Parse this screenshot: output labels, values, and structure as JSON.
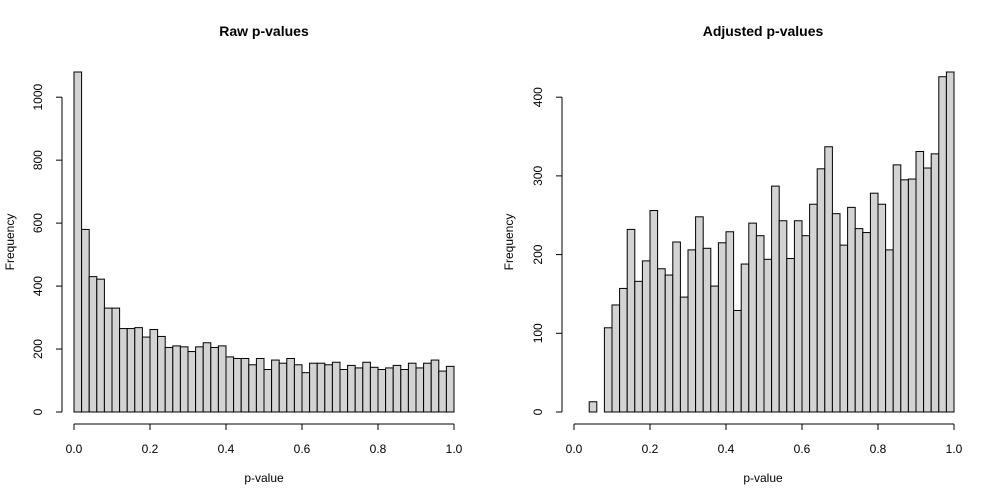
{
  "chart_data": [
    {
      "type": "bar",
      "title": "Raw p-values",
      "xlabel": "p-value",
      "ylabel": "Frequency",
      "bar_fill": "#d3d3d3",
      "bar_stroke": "#000000",
      "bin_width": 0.02,
      "xlim": [
        0,
        1
      ],
      "ylim": [
        0,
        1080
      ],
      "x_ticks": [
        "0.0",
        "0.2",
        "0.4",
        "0.6",
        "0.8",
        "1.0"
      ],
      "y_ticks": [
        "0",
        "200",
        "400",
        "600",
        "800",
        "1000"
      ],
      "bin_starts": [
        0.0,
        0.02,
        0.04,
        0.06,
        0.08,
        0.1,
        0.12,
        0.14,
        0.16,
        0.18,
        0.2,
        0.22,
        0.24,
        0.26,
        0.28,
        0.3,
        0.32,
        0.34,
        0.36,
        0.38,
        0.4,
        0.42,
        0.44,
        0.46,
        0.48,
        0.5,
        0.52,
        0.54,
        0.56,
        0.58,
        0.6,
        0.62,
        0.64,
        0.66,
        0.68,
        0.7,
        0.72,
        0.74,
        0.76,
        0.78,
        0.8,
        0.82,
        0.84,
        0.86,
        0.88,
        0.9,
        0.92,
        0.94,
        0.96,
        0.98
      ],
      "values": [
        1080,
        580,
        430,
        422,
        330,
        330,
        265,
        265,
        268,
        238,
        262,
        240,
        205,
        210,
        207,
        192,
        207,
        220,
        205,
        210,
        175,
        170,
        170,
        150,
        170,
        135,
        165,
        155,
        170,
        150,
        125,
        155,
        155,
        150,
        158,
        135,
        148,
        140,
        158,
        142,
        135,
        140,
        148,
        135,
        155,
        140,
        155,
        165,
        130,
        145
      ]
    },
    {
      "type": "bar",
      "title": "Adjusted p-values",
      "xlabel": "p-value",
      "ylabel": "Frequency",
      "bar_fill": "#d3d3d3",
      "bar_stroke": "#000000",
      "bin_width": 0.02,
      "xlim": [
        0,
        1
      ],
      "ylim": [
        0,
        432
      ],
      "x_ticks": [
        "0.0",
        "0.2",
        "0.4",
        "0.6",
        "0.8",
        "1.0"
      ],
      "y_ticks": [
        "0",
        "100",
        "200",
        "300",
        "400"
      ],
      "bin_starts": [
        0.04,
        0.06,
        0.08,
        0.1,
        0.12,
        0.14,
        0.16,
        0.18,
        0.2,
        0.22,
        0.24,
        0.26,
        0.28,
        0.3,
        0.32,
        0.34,
        0.36,
        0.38,
        0.4,
        0.42,
        0.44,
        0.46,
        0.48,
        0.5,
        0.52,
        0.54,
        0.56,
        0.58,
        0.6,
        0.62,
        0.64,
        0.66,
        0.68,
        0.7,
        0.72,
        0.74,
        0.76,
        0.78,
        0.8,
        0.82,
        0.84,
        0.86,
        0.88,
        0.9,
        0.92,
        0.94,
        0.96,
        0.98
      ],
      "values": [
        13,
        0,
        107,
        136,
        157,
        232,
        166,
        192,
        256,
        182,
        174,
        216,
        146,
        206,
        248,
        208,
        160,
        215,
        229,
        129,
        188,
        240,
        224,
        194,
        287,
        243,
        195,
        243,
        224,
        264,
        309,
        337,
        252,
        212,
        260,
        233,
        228,
        278,
        264,
        206,
        314,
        295,
        296,
        331,
        310,
        328,
        426,
        432
      ]
    }
  ]
}
